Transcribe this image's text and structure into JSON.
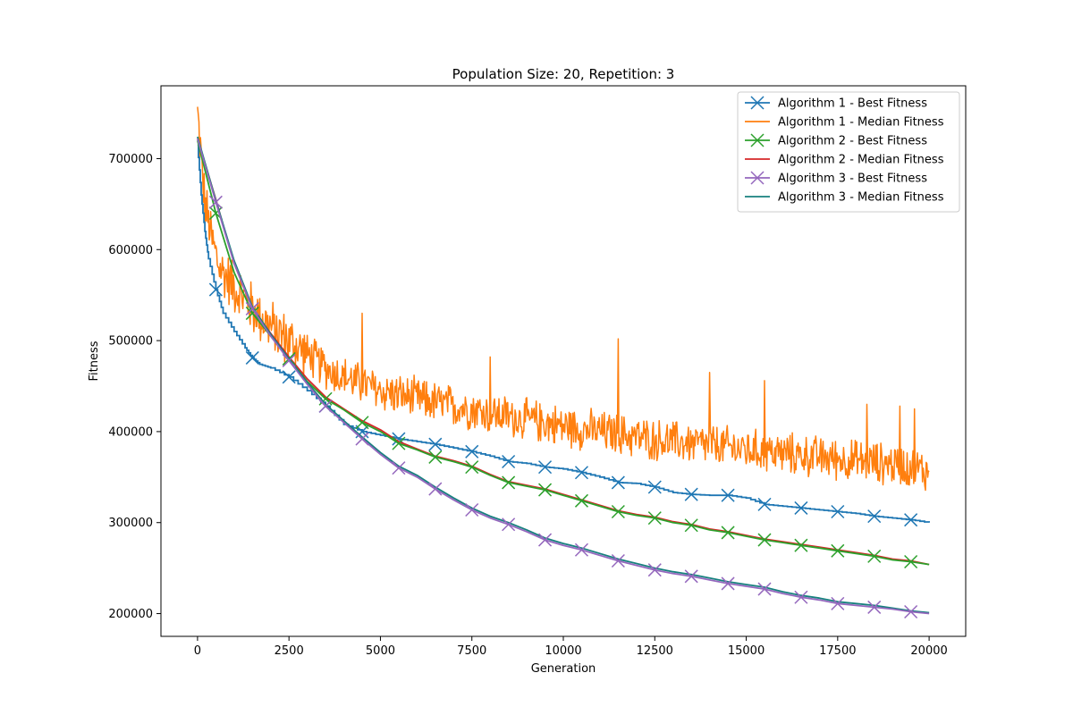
{
  "chart_data": {
    "type": "line",
    "title": "Population Size: 20, Repetition: 3",
    "xlabel": "Generation",
    "ylabel": "Fitness",
    "xlim": [
      -1000,
      21000
    ],
    "ylim": [
      175000,
      780000
    ],
    "xticks": [
      0,
      2500,
      5000,
      7500,
      10000,
      12500,
      15000,
      17500,
      20000
    ],
    "yticks": [
      200000,
      300000,
      400000,
      500000,
      600000,
      700000
    ],
    "grid": false,
    "legend_position": "top-right",
    "series": [
      {
        "name": "Algorithm 1 - Best Fitness",
        "color": "#1f77b4",
        "marker": "x",
        "style": "step",
        "x": [
          0,
          100,
          200,
          300,
          500,
          700,
          1000,
          1300,
          1500,
          1700,
          2000,
          2500,
          3000,
          3500,
          4000,
          4500,
          5000,
          5500,
          6000,
          6500,
          7000,
          7500,
          8000,
          8500,
          9000,
          9500,
          10000,
          10500,
          11000,
          11500,
          12000,
          12500,
          13000,
          13500,
          14000,
          14500,
          15000,
          15500,
          16000,
          16500,
          17000,
          17500,
          18000,
          18500,
          19000,
          19500,
          20000
        ],
        "y": [
          715000,
          660000,
          620000,
          590000,
          556000,
          530000,
          510000,
          492000,
          481000,
          474000,
          470000,
          460000,
          445000,
          428000,
          408000,
          400000,
          396000,
          392000,
          389000,
          386000,
          382000,
          378000,
          373000,
          367000,
          365000,
          361000,
          359000,
          355000,
          350000,
          344000,
          343000,
          339000,
          333000,
          331000,
          330000,
          330000,
          327000,
          320000,
          318000,
          316000,
          314000,
          312000,
          310000,
          307000,
          305000,
          303000,
          300000
        ],
        "marker_x": [
          500,
          1500,
          2500,
          3500,
          4500,
          5500,
          6500,
          7500,
          8500,
          9500,
          10500,
          11500,
          12500,
          13500,
          14500,
          15500,
          16500,
          17500,
          18500,
          19500
        ],
        "marker_y": [
          556000,
          481000,
          460000,
          428000,
          400000,
          392000,
          386000,
          378000,
          367000,
          361000,
          355000,
          344000,
          339000,
          331000,
          330000,
          320000,
          316000,
          312000,
          307000,
          303000
        ]
      },
      {
        "name": "Algorithm 1 - Median Fitness",
        "color": "#ff7f0e",
        "marker": "none",
        "style": "noisy",
        "x": [
          0,
          100,
          200,
          400,
          600,
          1000,
          1500,
          2000,
          2500,
          3000,
          3500,
          4000,
          4500,
          5000,
          5500,
          6000,
          6500,
          7000,
          7500,
          8000,
          8500,
          9000,
          9500,
          10000,
          10500,
          11000,
          11500,
          12000,
          12500,
          13000,
          13500,
          14000,
          14500,
          15000,
          15500,
          16000,
          16500,
          17000,
          17500,
          18000,
          18500,
          19000,
          19500,
          20000
        ],
        "y": [
          750000,
          700000,
          650000,
          610000,
          580000,
          560000,
          535000,
          515000,
          500000,
          485000,
          470000,
          460000,
          452000,
          445000,
          440000,
          436000,
          432000,
          428000,
          425000,
          420000,
          417000,
          413000,
          410000,
          406000,
          403000,
          400000,
          397000,
          394000,
          391000,
          389000,
          387000,
          385000,
          383000,
          380000,
          378000,
          376000,
          374000,
          372000,
          370000,
          368000,
          366000,
          364000,
          362000,
          355000
        ],
        "noise_amplitude": 22000,
        "spikes": [
          [
            4500,
            530000
          ],
          [
            11500,
            502000
          ],
          [
            8000,
            482000
          ],
          [
            15500,
            456000
          ],
          [
            18300,
            430000
          ],
          [
            19200,
            428000
          ],
          [
            19600,
            425000
          ],
          [
            14000,
            465000
          ]
        ]
      },
      {
        "name": "Algorithm 2 - Best Fitness",
        "color": "#2ca02c",
        "marker": "x",
        "style": "line",
        "x": [
          0,
          500,
          1000,
          1500,
          2000,
          2500,
          3000,
          3500,
          4000,
          4500,
          5000,
          5500,
          6000,
          6500,
          7000,
          7500,
          8000,
          8500,
          9000,
          9500,
          10000,
          10500,
          11000,
          11500,
          12000,
          12500,
          13000,
          13500,
          14000,
          14500,
          15000,
          15500,
          16000,
          16500,
          17000,
          17500,
          18000,
          18500,
          19000,
          19500,
          20000
        ],
        "y": [
          720000,
          640000,
          575000,
          530000,
          505000,
          480000,
          455000,
          436000,
          424000,
          410000,
          400000,
          387000,
          380000,
          372000,
          367000,
          361000,
          352000,
          344000,
          340000,
          336000,
          330000,
          324000,
          318000,
          312000,
          308000,
          305000,
          300000,
          297000,
          292000,
          289000,
          285000,
          281000,
          278000,
          275000,
          272000,
          269000,
          266000,
          263000,
          259000,
          257000,
          254000
        ],
        "marker_x": [
          500,
          1500,
          2500,
          3500,
          4500,
          5500,
          6500,
          7500,
          8500,
          9500,
          10500,
          11500,
          12500,
          13500,
          14500,
          15500,
          16500,
          17500,
          18500,
          19500
        ],
        "marker_y": [
          640000,
          530000,
          480000,
          436000,
          410000,
          387000,
          372000,
          361000,
          344000,
          336000,
          324000,
          312000,
          305000,
          297000,
          289000,
          281000,
          275000,
          269000,
          263000,
          257000
        ]
      },
      {
        "name": "Algorithm 2 - Median Fitness",
        "color": "#d62728",
        "marker": "none",
        "style": "line",
        "x": [
          0,
          500,
          1000,
          1500,
          2000,
          2500,
          3000,
          3500,
          4000,
          4500,
          5000,
          5500,
          6000,
          6500,
          7000,
          7500,
          8000,
          8500,
          9000,
          9500,
          10000,
          10500,
          11000,
          11500,
          12000,
          12500,
          13000,
          13500,
          14000,
          14500,
          15000,
          15500,
          16000,
          16500,
          17000,
          17500,
          18000,
          18500,
          19000,
          19500,
          20000
        ],
        "y": [
          722000,
          655000,
          585000,
          535000,
          508000,
          482000,
          458000,
          438000,
          425000,
          412000,
          402000,
          389000,
          381000,
          373000,
          368000,
          362000,
          353000,
          345000,
          341000,
          337000,
          331000,
          325000,
          319000,
          313000,
          309000,
          306000,
          301000,
          298000,
          293000,
          290000,
          286000,
          282000,
          279000,
          276000,
          273000,
          270000,
          267000,
          264000,
          260000,
          258000,
          254000
        ]
      },
      {
        "name": "Algorithm 3 - Best Fitness",
        "color": "#9467bd",
        "marker": "x",
        "style": "line",
        "x": [
          0,
          500,
          1000,
          1500,
          2000,
          2500,
          3000,
          3500,
          4000,
          4500,
          5000,
          5500,
          6000,
          6500,
          7000,
          7500,
          8000,
          8500,
          9000,
          9500,
          10000,
          10500,
          11000,
          11500,
          12000,
          12500,
          13000,
          13500,
          14000,
          14500,
          15000,
          15500,
          16000,
          16500,
          17000,
          17500,
          18000,
          18500,
          19000,
          19500,
          20000
        ],
        "y": [
          722000,
          652000,
          585000,
          535000,
          505000,
          478000,
          452000,
          428000,
          410000,
          392000,
          375000,
          360000,
          350000,
          337000,
          325000,
          314000,
          305000,
          298000,
          290000,
          281000,
          275000,
          270000,
          264000,
          258000,
          253000,
          248000,
          244000,
          241000,
          237000,
          233000,
          230000,
          227000,
          222000,
          218000,
          215000,
          211000,
          209000,
          207000,
          205000,
          202000,
          200000
        ],
        "marker_x": [
          500,
          1500,
          2500,
          3500,
          4500,
          5500,
          6500,
          7500,
          8500,
          9500,
          10500,
          11500,
          12500,
          13500,
          14500,
          15500,
          16500,
          17500,
          18500,
          19500
        ],
        "marker_y": [
          652000,
          535000,
          478000,
          428000,
          392000,
          360000,
          337000,
          314000,
          298000,
          281000,
          270000,
          258000,
          248000,
          241000,
          233000,
          227000,
          218000,
          211000,
          207000,
          202000
        ]
      },
      {
        "name": "Algorithm 3 - Median Fitness",
        "color": "#17807e",
        "marker": "none",
        "style": "line",
        "x": [
          0,
          500,
          1000,
          1500,
          2000,
          2500,
          3000,
          3500,
          4000,
          4500,
          5000,
          5500,
          6000,
          6500,
          7000,
          7500,
          8000,
          8500,
          9000,
          9500,
          10000,
          10500,
          11000,
          11500,
          12000,
          12500,
          13000,
          13500,
          14000,
          14500,
          15000,
          15500,
          16000,
          16500,
          17000,
          17500,
          18000,
          18500,
          19000,
          19500,
          20000
        ],
        "y": [
          724000,
          654000,
          588000,
          537000,
          507000,
          480000,
          454000,
          430000,
          412000,
          394000,
          377000,
          362000,
          352000,
          339000,
          327000,
          316000,
          307000,
          300000,
          292000,
          283000,
          277000,
          272000,
          266000,
          260000,
          255000,
          250000,
          246000,
          243000,
          239000,
          235000,
          232000,
          229000,
          224000,
          220000,
          217000,
          213000,
          211000,
          209000,
          206000,
          203000,
          201000
        ]
      }
    ]
  }
}
